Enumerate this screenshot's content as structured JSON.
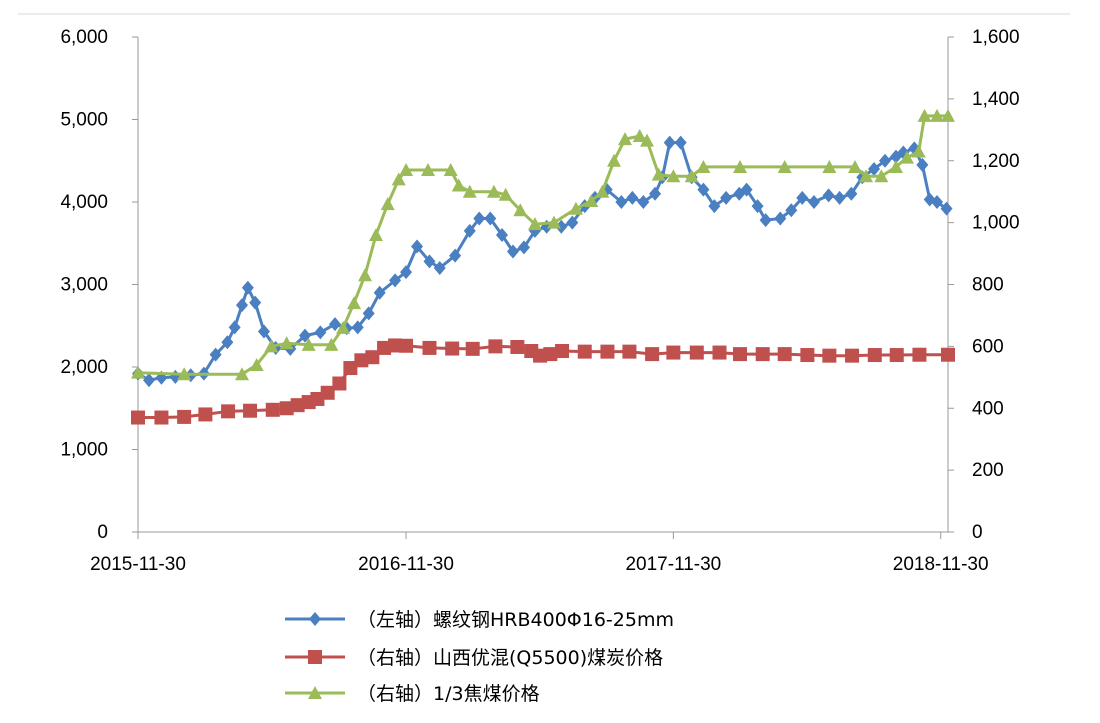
{
  "chart_data": {
    "type": "line",
    "x_ticks": [
      "2015-11-30",
      "2016-11-30",
      "2017-11-30",
      "2018-11-30"
    ],
    "x_range": [
      "2015-11-30",
      "2018-12-10"
    ],
    "ylim_left": [
      0,
      6000
    ],
    "ylim_right": [
      0,
      1600
    ],
    "y_left_ticks": [
      "0",
      "1,000",
      "2,000",
      "3,000",
      "4,000",
      "5,000",
      "6,000"
    ],
    "y_right_ticks": [
      "0",
      "200",
      "400",
      "600",
      "800",
      "1,000",
      "1,200",
      "1,400",
      "1,600"
    ],
    "grid": false,
    "legend_position": "bottom",
    "series": [
      {
        "name": "（左轴）螺纹钢HRB400Φ16-25mm",
        "axis": "left",
        "color": "#4a7fc1",
        "marker": "diamond",
        "points": [
          [
            "2015-11-30",
            1920
          ],
          [
            "2015-12-15",
            1840
          ],
          [
            "2016-01-01",
            1870
          ],
          [
            "2016-01-20",
            1880
          ],
          [
            "2016-02-10",
            1900
          ],
          [
            "2016-02-28",
            1920
          ],
          [
            "2016-03-15",
            2150
          ],
          [
            "2016-03-31",
            2300
          ],
          [
            "2016-04-10",
            2480
          ],
          [
            "2016-04-20",
            2750
          ],
          [
            "2016-04-28",
            2960
          ],
          [
            "2016-05-08",
            2780
          ],
          [
            "2016-05-20",
            2430
          ],
          [
            "2016-06-05",
            2230
          ],
          [
            "2016-06-25",
            2220
          ],
          [
            "2016-07-15",
            2380
          ],
          [
            "2016-08-05",
            2420
          ],
          [
            "2016-08-25",
            2520
          ],
          [
            "2016-09-10",
            2470
          ],
          [
            "2016-09-25",
            2480
          ],
          [
            "2016-10-10",
            2650
          ],
          [
            "2016-10-25",
            2900
          ],
          [
            "2016-11-15",
            3050
          ],
          [
            "2016-11-30",
            3150
          ],
          [
            "2016-12-15",
            3460
          ],
          [
            "2017-01-01",
            3280
          ],
          [
            "2017-01-15",
            3200
          ],
          [
            "2017-02-05",
            3350
          ],
          [
            "2017-02-25",
            3650
          ],
          [
            "2017-03-10",
            3800
          ],
          [
            "2017-03-25",
            3800
          ],
          [
            "2017-04-10",
            3600
          ],
          [
            "2017-04-25",
            3400
          ],
          [
            "2017-05-10",
            3450
          ],
          [
            "2017-05-25",
            3650
          ],
          [
            "2017-06-10",
            3700
          ],
          [
            "2017-06-30",
            3700
          ],
          [
            "2017-07-15",
            3750
          ],
          [
            "2017-08-01",
            3950
          ],
          [
            "2017-08-15",
            4050
          ],
          [
            "2017-08-31",
            4150
          ],
          [
            "2017-09-20",
            4000
          ],
          [
            "2017-10-05",
            4050
          ],
          [
            "2017-10-20",
            4000
          ],
          [
            "2017-11-05",
            4100
          ],
          [
            "2017-11-15",
            4300
          ],
          [
            "2017-11-25",
            4720
          ],
          [
            "2017-12-10",
            4720
          ],
          [
            "2017-12-25",
            4300
          ],
          [
            "2018-01-10",
            4150
          ],
          [
            "2018-01-25",
            3950
          ],
          [
            "2018-02-10",
            4050
          ],
          [
            "2018-02-28",
            4100
          ],
          [
            "2018-03-10",
            4150
          ],
          [
            "2018-03-25",
            3950
          ],
          [
            "2018-04-05",
            3780
          ],
          [
            "2018-04-25",
            3800
          ],
          [
            "2018-05-10",
            3900
          ],
          [
            "2018-05-25",
            4050
          ],
          [
            "2018-06-10",
            4000
          ],
          [
            "2018-06-30",
            4080
          ],
          [
            "2018-07-15",
            4050
          ],
          [
            "2018-07-31",
            4100
          ],
          [
            "2018-08-15",
            4300
          ],
          [
            "2018-08-31",
            4400
          ],
          [
            "2018-09-15",
            4500
          ],
          [
            "2018-09-30",
            4550
          ],
          [
            "2018-10-10",
            4600
          ],
          [
            "2018-10-25",
            4650
          ],
          [
            "2018-11-05",
            4450
          ],
          [
            "2018-11-15",
            4030
          ],
          [
            "2018-11-25",
            4000
          ],
          [
            "2018-12-08",
            3920
          ]
        ]
      },
      {
        "name": "（右轴）山西优混(Q5500)煤炭价格",
        "axis": "right",
        "color": "#c0504d",
        "marker": "square",
        "points": [
          [
            "2015-11-30",
            370
          ],
          [
            "2016-01-01",
            370
          ],
          [
            "2016-02-01",
            372
          ],
          [
            "2016-03-01",
            380
          ],
          [
            "2016-04-01",
            390
          ],
          [
            "2016-05-01",
            392
          ],
          [
            "2016-06-01",
            395
          ],
          [
            "2016-06-20",
            400
          ],
          [
            "2016-07-05",
            410
          ],
          [
            "2016-07-20",
            420
          ],
          [
            "2016-08-01",
            430
          ],
          [
            "2016-08-15",
            450
          ],
          [
            "2016-08-31",
            480
          ],
          [
            "2016-09-15",
            530
          ],
          [
            "2016-09-30",
            555
          ],
          [
            "2016-10-15",
            565
          ],
          [
            "2016-10-31",
            595
          ],
          [
            "2016-11-15",
            603
          ],
          [
            "2016-11-30",
            602
          ],
          [
            "2017-01-01",
            595
          ],
          [
            "2017-02-01",
            593
          ],
          [
            "2017-03-01",
            592
          ],
          [
            "2017-04-01",
            600
          ],
          [
            "2017-05-01",
            598
          ],
          [
            "2017-05-20",
            585
          ],
          [
            "2017-06-01",
            570
          ],
          [
            "2017-06-15",
            575
          ],
          [
            "2017-07-01",
            585
          ],
          [
            "2017-08-01",
            583
          ],
          [
            "2017-09-01",
            583
          ],
          [
            "2017-10-01",
            583
          ],
          [
            "2017-11-01",
            575
          ],
          [
            "2017-11-30",
            580
          ],
          [
            "2018-01-01",
            580
          ],
          [
            "2018-02-01",
            580
          ],
          [
            "2018-03-01",
            575
          ],
          [
            "2018-04-01",
            575
          ],
          [
            "2018-05-01",
            575
          ],
          [
            "2018-06-01",
            572
          ],
          [
            "2018-07-01",
            570
          ],
          [
            "2018-08-01",
            570
          ],
          [
            "2018-09-01",
            572
          ],
          [
            "2018-10-01",
            572
          ],
          [
            "2018-11-01",
            573
          ],
          [
            "2018-12-10",
            573
          ]
        ]
      },
      {
        "name": "（右轴）1/3焦煤价格",
        "axis": "right",
        "color": "#9bbb59",
        "marker": "triangle",
        "points": [
          [
            "2015-11-30",
            515
          ],
          [
            "2016-02-01",
            510
          ],
          [
            "2016-04-20",
            510
          ],
          [
            "2016-05-10",
            540
          ],
          [
            "2016-05-30",
            600
          ],
          [
            "2016-06-20",
            610
          ],
          [
            "2016-07-20",
            605
          ],
          [
            "2016-08-20",
            605
          ],
          [
            "2016-09-05",
            660
          ],
          [
            "2016-09-20",
            740
          ],
          [
            "2016-10-05",
            830
          ],
          [
            "2016-10-20",
            960
          ],
          [
            "2016-11-05",
            1060
          ],
          [
            "2016-11-20",
            1140
          ],
          [
            "2016-11-30",
            1170
          ],
          [
            "2016-12-30",
            1170
          ],
          [
            "2017-01-30",
            1170
          ],
          [
            "2017-02-10",
            1120
          ],
          [
            "2017-02-25",
            1100
          ],
          [
            "2017-03-30",
            1100
          ],
          [
            "2017-04-15",
            1090
          ],
          [
            "2017-05-05",
            1040
          ],
          [
            "2017-05-25",
            995
          ],
          [
            "2017-06-20",
            1000
          ],
          [
            "2017-07-20",
            1045
          ],
          [
            "2017-08-10",
            1070
          ],
          [
            "2017-08-25",
            1100
          ],
          [
            "2017-09-10",
            1200
          ],
          [
            "2017-09-25",
            1270
          ],
          [
            "2017-10-15",
            1280
          ],
          [
            "2017-10-25",
            1265
          ],
          [
            "2017-11-10",
            1155
          ],
          [
            "2017-11-30",
            1150
          ],
          [
            "2017-12-25",
            1150
          ],
          [
            "2018-01-10",
            1180
          ],
          [
            "2018-03-01",
            1180
          ],
          [
            "2018-05-01",
            1180
          ],
          [
            "2018-07-01",
            1180
          ],
          [
            "2018-08-05",
            1180
          ],
          [
            "2018-08-20",
            1150
          ],
          [
            "2018-09-10",
            1150
          ],
          [
            "2018-09-30",
            1180
          ],
          [
            "2018-10-15",
            1210
          ],
          [
            "2018-10-31",
            1230
          ],
          [
            "2018-11-08",
            1345
          ],
          [
            "2018-11-25",
            1345
          ],
          [
            "2018-12-10",
            1345
          ]
        ]
      }
    ]
  }
}
